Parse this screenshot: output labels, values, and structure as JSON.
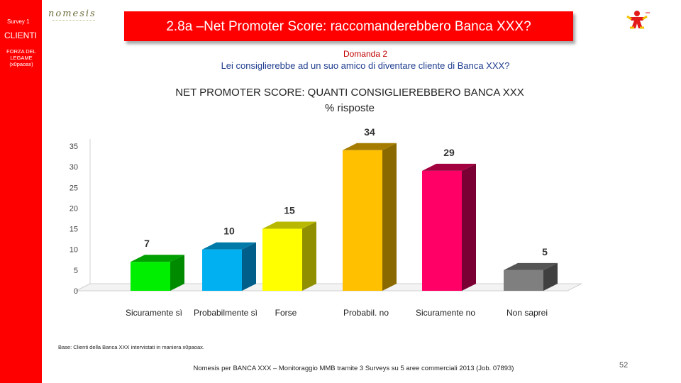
{
  "sidebar": {
    "survey": "Survey 1",
    "section": "CLIENTI",
    "subsection": "FORZA DEL LEGAME (x0paoax)"
  },
  "logo": {
    "text": "nomesis"
  },
  "header": {
    "title": "2.8a –Net Promoter Score: raccomanderebbero Banca XXX?"
  },
  "question": {
    "label": "Domanda 2",
    "text": "Lei consiglierebbe ad un suo amico di diventare cliente di Banca XXX?"
  },
  "chart_data": {
    "type": "bar",
    "title": "NET PROMOTER SCORE: QUANTI CONSIGLIEREBBERO BANCA XXX",
    "subtitle": "% risposte",
    "categories": [
      "Sicuramente sì",
      "Probabilmente sì",
      "Forse",
      "Probabil. no",
      "Sicuramente no",
      "Non saprei"
    ],
    "values": [
      7,
      10,
      15,
      34,
      29,
      5
    ],
    "value_labels": [
      "7",
      "10",
      "15",
      "34",
      "29",
      "5"
    ],
    "colors": [
      "#00ee00",
      "#00b0f0",
      "#ffff00",
      "#ffc000",
      "#ff0066",
      "#7f7f7f"
    ],
    "side_colors": [
      "#008a00",
      "#005f8a",
      "#8f8f00",
      "#8a6a00",
      "#7a0033",
      "#404040"
    ],
    "top_colors": [
      "#00a000",
      "#007aa8",
      "#b8b800",
      "#a67c00",
      "#a3003f",
      "#555555"
    ],
    "ylim": [
      0,
      35
    ],
    "yticks": [
      0,
      5,
      10,
      15,
      20,
      25,
      30,
      35
    ],
    "ytick_labels": [
      "0",
      "5",
      "10",
      "15",
      "20",
      "25",
      "30",
      "35"
    ],
    "grid": false,
    "legend": "none",
    "xlabel": "",
    "ylabel": ""
  },
  "notes": {
    "base": "Base: Clienti della Banca XXX intervistati in maniera x0paoax.",
    "footer": "Nomesis per BANCA XXX – Monitoraggio MMB tramite 3 Surveys su 5 aree commerciali 2013 (Job. 07893)",
    "page": "52"
  }
}
